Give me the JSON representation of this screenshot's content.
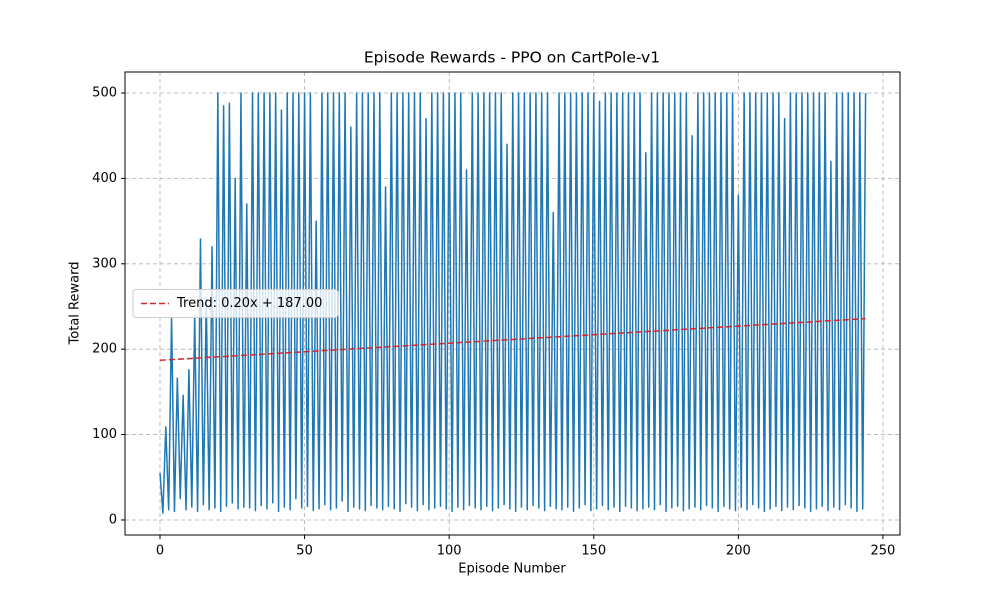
{
  "chart_data": {
    "type": "line",
    "title": "Episode Rewards - PPO on CartPole-v1",
    "x_label": "Episode Number",
    "y_label": "Total Reward",
    "xlim": [
      -12.1,
      255.9
    ],
    "xticks": [
      0,
      50,
      100,
      150,
      200,
      250
    ],
    "ylim": [
      -17.6,
      524.6
    ],
    "yticks": [
      0,
      100,
      200,
      300,
      400,
      500
    ],
    "grid": true,
    "legend": "center left",
    "series": [
      {
        "color": "#1f77b4",
        "x": [
          0,
          1,
          2,
          3,
          4,
          5,
          6,
          7,
          8,
          9,
          10,
          11,
          12,
          13,
          14,
          15,
          16,
          17,
          18,
          19,
          20,
          21,
          22,
          23,
          24,
          25,
          26,
          27,
          28,
          29,
          30,
          31,
          32,
          33,
          34,
          35,
          36,
          37,
          38,
          39,
          40,
          41,
          42,
          43,
          44,
          45,
          46,
          47,
          48,
          49,
          50,
          51,
          52,
          53,
          54,
          55,
          56,
          57,
          58,
          59,
          60,
          61,
          62,
          63,
          64,
          65,
          66,
          67,
          68,
          69,
          70,
          71,
          72,
          73,
          74,
          75,
          76,
          77,
          78,
          79,
          80,
          81,
          82,
          83,
          84,
          85,
          86,
          87,
          88,
          89,
          90,
          91,
          92,
          93,
          94,
          95,
          96,
          97,
          98,
          99,
          100,
          101,
          102,
          103,
          104,
          105,
          106,
          107,
          108,
          109,
          110,
          111,
          112,
          113,
          114,
          115,
          116,
          117,
          118,
          119,
          120,
          121,
          122,
          123,
          124,
          125,
          126,
          127,
          128,
          129,
          130,
          131,
          132,
          133,
          134,
          135,
          136,
          137,
          138,
          139,
          140,
          141,
          142,
          143,
          144,
          145,
          146,
          147,
          148,
          149,
          150,
          151,
          152,
          153,
          154,
          155,
          156,
          157,
          158,
          159,
          160,
          161,
          162,
          163,
          164,
          165,
          166,
          167,
          168,
          169,
          170,
          171,
          172,
          173,
          174,
          175,
          176,
          177,
          178,
          179,
          180,
          181,
          182,
          183,
          184,
          185,
          186,
          187,
          188,
          189,
          190,
          191,
          192,
          193,
          194,
          195,
          196,
          197,
          198,
          199,
          200,
          201,
          202,
          203,
          204,
          205,
          206,
          207,
          208,
          209,
          210,
          211,
          212,
          213,
          214,
          215,
          216,
          217,
          218,
          219,
          220,
          221,
          222,
          223,
          224,
          225,
          226,
          227,
          228,
          229,
          230,
          231,
          232,
          233,
          234,
          235,
          236,
          237,
          238,
          239,
          240,
          241,
          242,
          243,
          244
        ],
        "values": [
          55,
          8,
          109,
          12,
          237,
          10,
          166,
          25,
          146,
          12,
          176,
          15,
          240,
          10,
          329,
          18,
          260,
          12,
          320,
          14,
          500,
          10,
          485,
          16,
          488,
          20,
          400,
          13,
          500,
          15,
          370,
          14,
          500,
          11,
          500,
          17,
          500,
          13,
          500,
          20,
          500,
          10,
          480,
          15,
          500,
          12,
          500,
          25,
          500,
          14,
          500,
          16,
          500,
          11,
          350,
          13,
          500,
          18,
          500,
          12,
          500,
          14,
          500,
          22,
          500,
          10,
          460,
          15,
          500,
          13,
          500,
          11,
          500,
          17,
          500,
          14,
          500,
          12,
          390,
          16,
          500,
          13,
          500,
          10,
          500,
          19,
          500,
          15,
          500,
          11,
          500,
          18,
          470,
          12,
          500,
          14,
          500,
          16,
          500,
          13,
          500,
          10,
          500,
          15,
          500,
          12,
          410,
          17,
          500,
          14,
          500,
          12,
          500,
          16,
          500,
          11,
          500,
          14,
          500,
          18,
          440,
          13,
          500,
          10,
          500,
          15,
          500,
          12,
          500,
          17,
          500,
          14,
          500,
          11,
          500,
          16,
          360,
          13,
          500,
          12,
          500,
          15,
          500,
          10,
          500,
          14,
          500,
          18,
          500,
          11,
          500,
          13,
          490,
          17,
          500,
          12,
          500,
          15,
          500,
          10,
          500,
          16,
          500,
          14,
          500,
          11,
          500,
          13,
          430,
          15,
          500,
          12,
          500,
          18,
          500,
          10,
          500,
          14,
          500,
          16,
          500,
          11,
          500,
          13,
          450,
          15,
          500,
          12,
          500,
          17,
          500,
          14,
          500,
          10,
          500,
          16,
          500,
          13,
          500,
          11,
          380,
          15,
          500,
          12,
          500,
          18,
          500,
          14,
          500,
          10,
          500,
          13,
          500,
          16,
          500,
          11,
          470,
          15,
          500,
          12,
          500,
          17,
          500,
          14,
          500,
          10,
          500,
          13,
          500,
          16,
          500,
          11,
          420,
          15,
          500,
          12,
          500,
          18,
          500,
          14,
          500,
          10,
          500,
          13,
          500
        ]
      },
      {
        "name": "Trend: 0.20x + 187.00",
        "color": "#d62728",
        "dashed": true,
        "x": [
          0,
          244
        ],
        "values": [
          187,
          235.8
        ]
      }
    ]
  }
}
